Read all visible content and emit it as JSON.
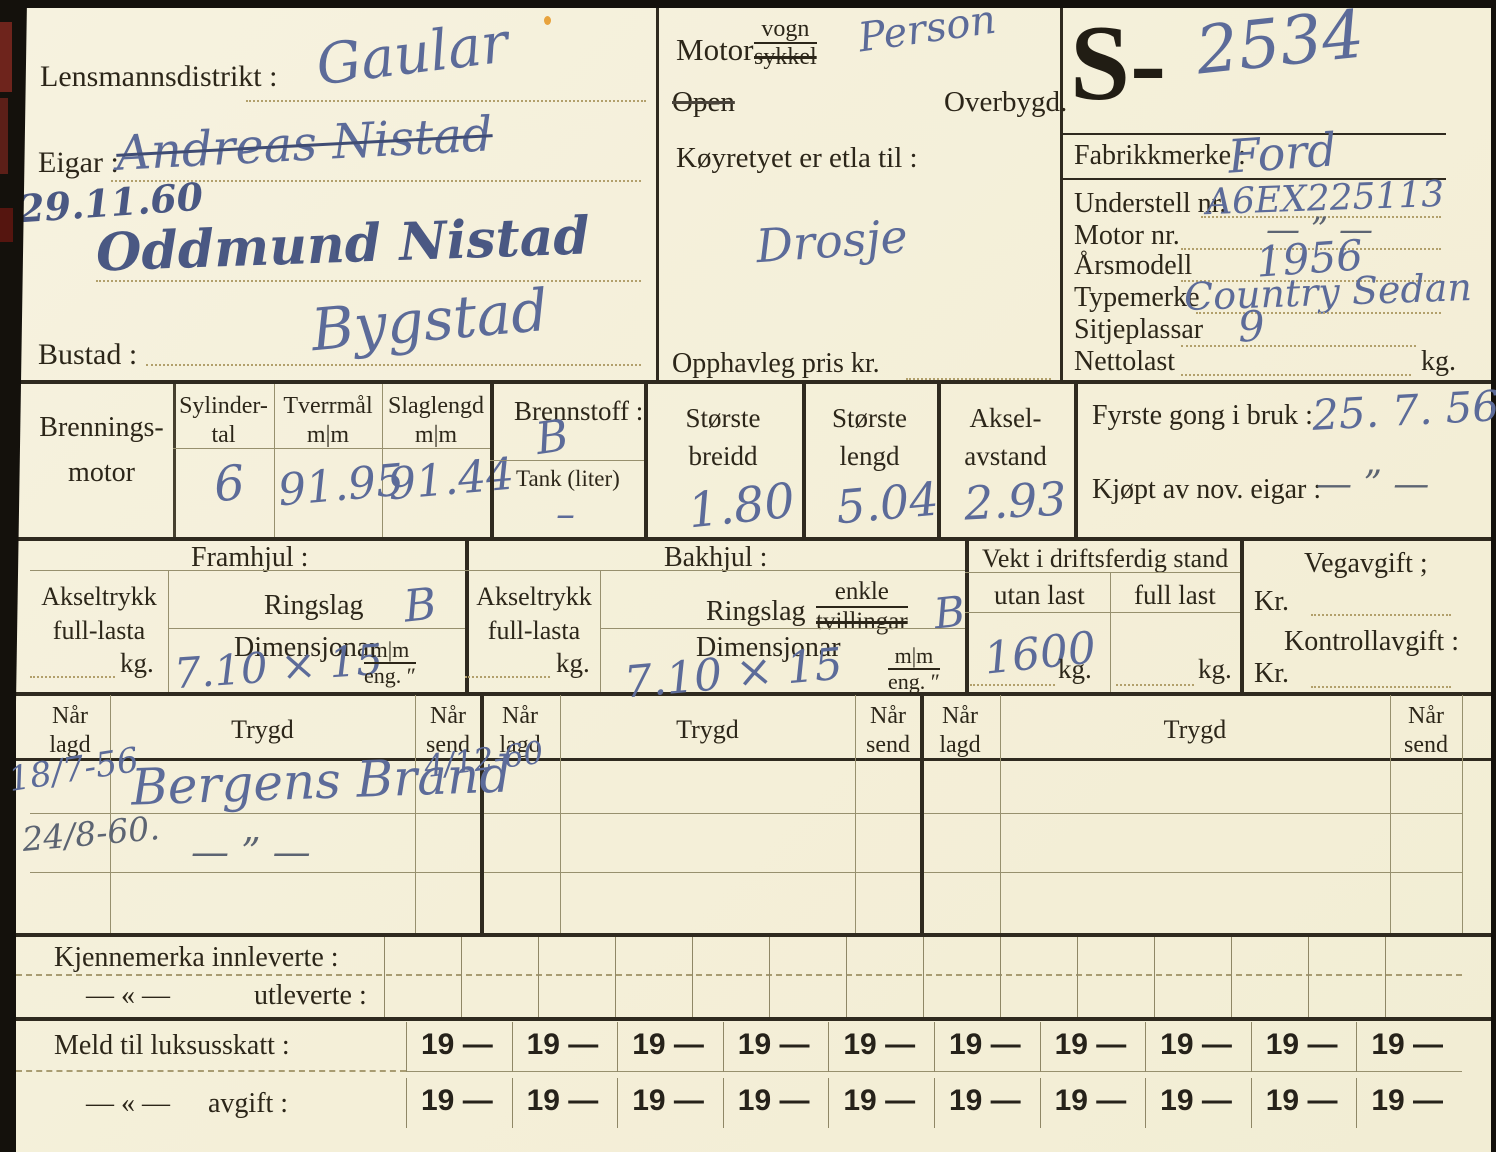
{
  "plate": {
    "prefix": "S-",
    "number": "2534"
  },
  "owner": {
    "district_label": "Lensmannsdistrikt :",
    "district": "Gaular",
    "eigar_label": "Eigar :",
    "prev_owner": "Andreas Nistad",
    "transfer_date": "29.11.60",
    "new_owner": "Oddmund Nistad",
    "bustad_label": "Bustad :",
    "bustad": "Bygstad"
  },
  "type": {
    "motor": "Motor",
    "vogn": "vogn",
    "sykkel": "sykkel",
    "kind": "Person",
    "open": "Open",
    "overbygd": "Overbygd.",
    "purpose_label": "Køyretyet er etla til :",
    "purpose": "Drosje",
    "price_label": "Opphavleg pris kr."
  },
  "id": {
    "make_label": "Fabrikkmerke :",
    "make": "Ford",
    "chassis_label": "Understell nr.",
    "chassis": "A6EX225113",
    "motornr_label": "Motor nr.",
    "motornr": "— ” —",
    "year_label": "Årsmodell",
    "year": "1956",
    "type_label": "Typemerke",
    "typemerke": "Country Sedan",
    "seats_label": "Sitjeplassar",
    "seats": "9",
    "nettolast_label": "Nettolast",
    "kg": "kg."
  },
  "engine": {
    "motor1": "Brennings-",
    "motor2": "motor",
    "syl1": "Sylinder-",
    "syl2": "tal",
    "syl": "6",
    "bore1": "Tverrmål",
    "bore2": "m|m",
    "bore": "91.95",
    "stroke1": "Slaglengd",
    "stroke2": "m|m",
    "stroke": "91.44",
    "fuel_label": "Brennstoff :",
    "fuel": "B",
    "tank_label": "Tank (liter)",
    "tank": "–",
    "w1": "Største",
    "w2": "breidd",
    "w": "1.80",
    "l1": "Største",
    "l2": "lengd",
    "l": "5.04",
    "a1": "Aksel-",
    "a2": "avstand",
    "a": "2.93",
    "firstuse_label": "Fyrste gong i bruk :",
    "firstuse": "25. 7. 56",
    "bought_label": "Kjøpt av nov. eigar :",
    "bought": "— ” —"
  },
  "wheels": {
    "front_title": "Framhjul :",
    "rear_title": "Bakhjul :",
    "axle1": "Akseltrykk",
    "axle2": "full-lasta",
    "kg": "kg.",
    "ring_label": "Ringslag",
    "front_ring": "B",
    "rear_ring": "B",
    "enkle": "enkle",
    "tvillingar": "tvillingar",
    "dim_label": "Dimensjonar",
    "front_dim": "7.10 × 15",
    "rear_dim": "7.10 × 15",
    "mm": "m|m",
    "eng": "eng. ″"
  },
  "weight": {
    "title": "Vekt i driftsferdig stand",
    "utan_label": "utan last",
    "utan": "1600",
    "full_label": "full last",
    "kg": "kg."
  },
  "fees": {
    "veg_label": "Vegavgift ;",
    "kr": "Kr.",
    "kontroll_label": "Kontrollavgift :"
  },
  "trygd": {
    "nar": "Når",
    "lagd": "lagd",
    "send": "send",
    "trygd": "Trygd",
    "r1_lagd": "18/7-56",
    "r1_trygd": "Bergens Brand",
    "r1_send": "4/12-60",
    "r2_lagd": "24/8-60.",
    "r2_trygd": "— ” —"
  },
  "plates": {
    "inn_label": "Kjennemerka innleverte :",
    "ditto": "— « —",
    "ut_label": "utleverte :"
  },
  "tax": {
    "lux_label": "Meld til luksusskatt :",
    "ditto": "— « —",
    "avgift_label": "avgift :",
    "years": [
      "19 —",
      "19 —",
      "19 —",
      "19 —",
      "19 —",
      "19 —",
      "19 —",
      "19 —",
      "19 —",
      "19 —"
    ]
  }
}
